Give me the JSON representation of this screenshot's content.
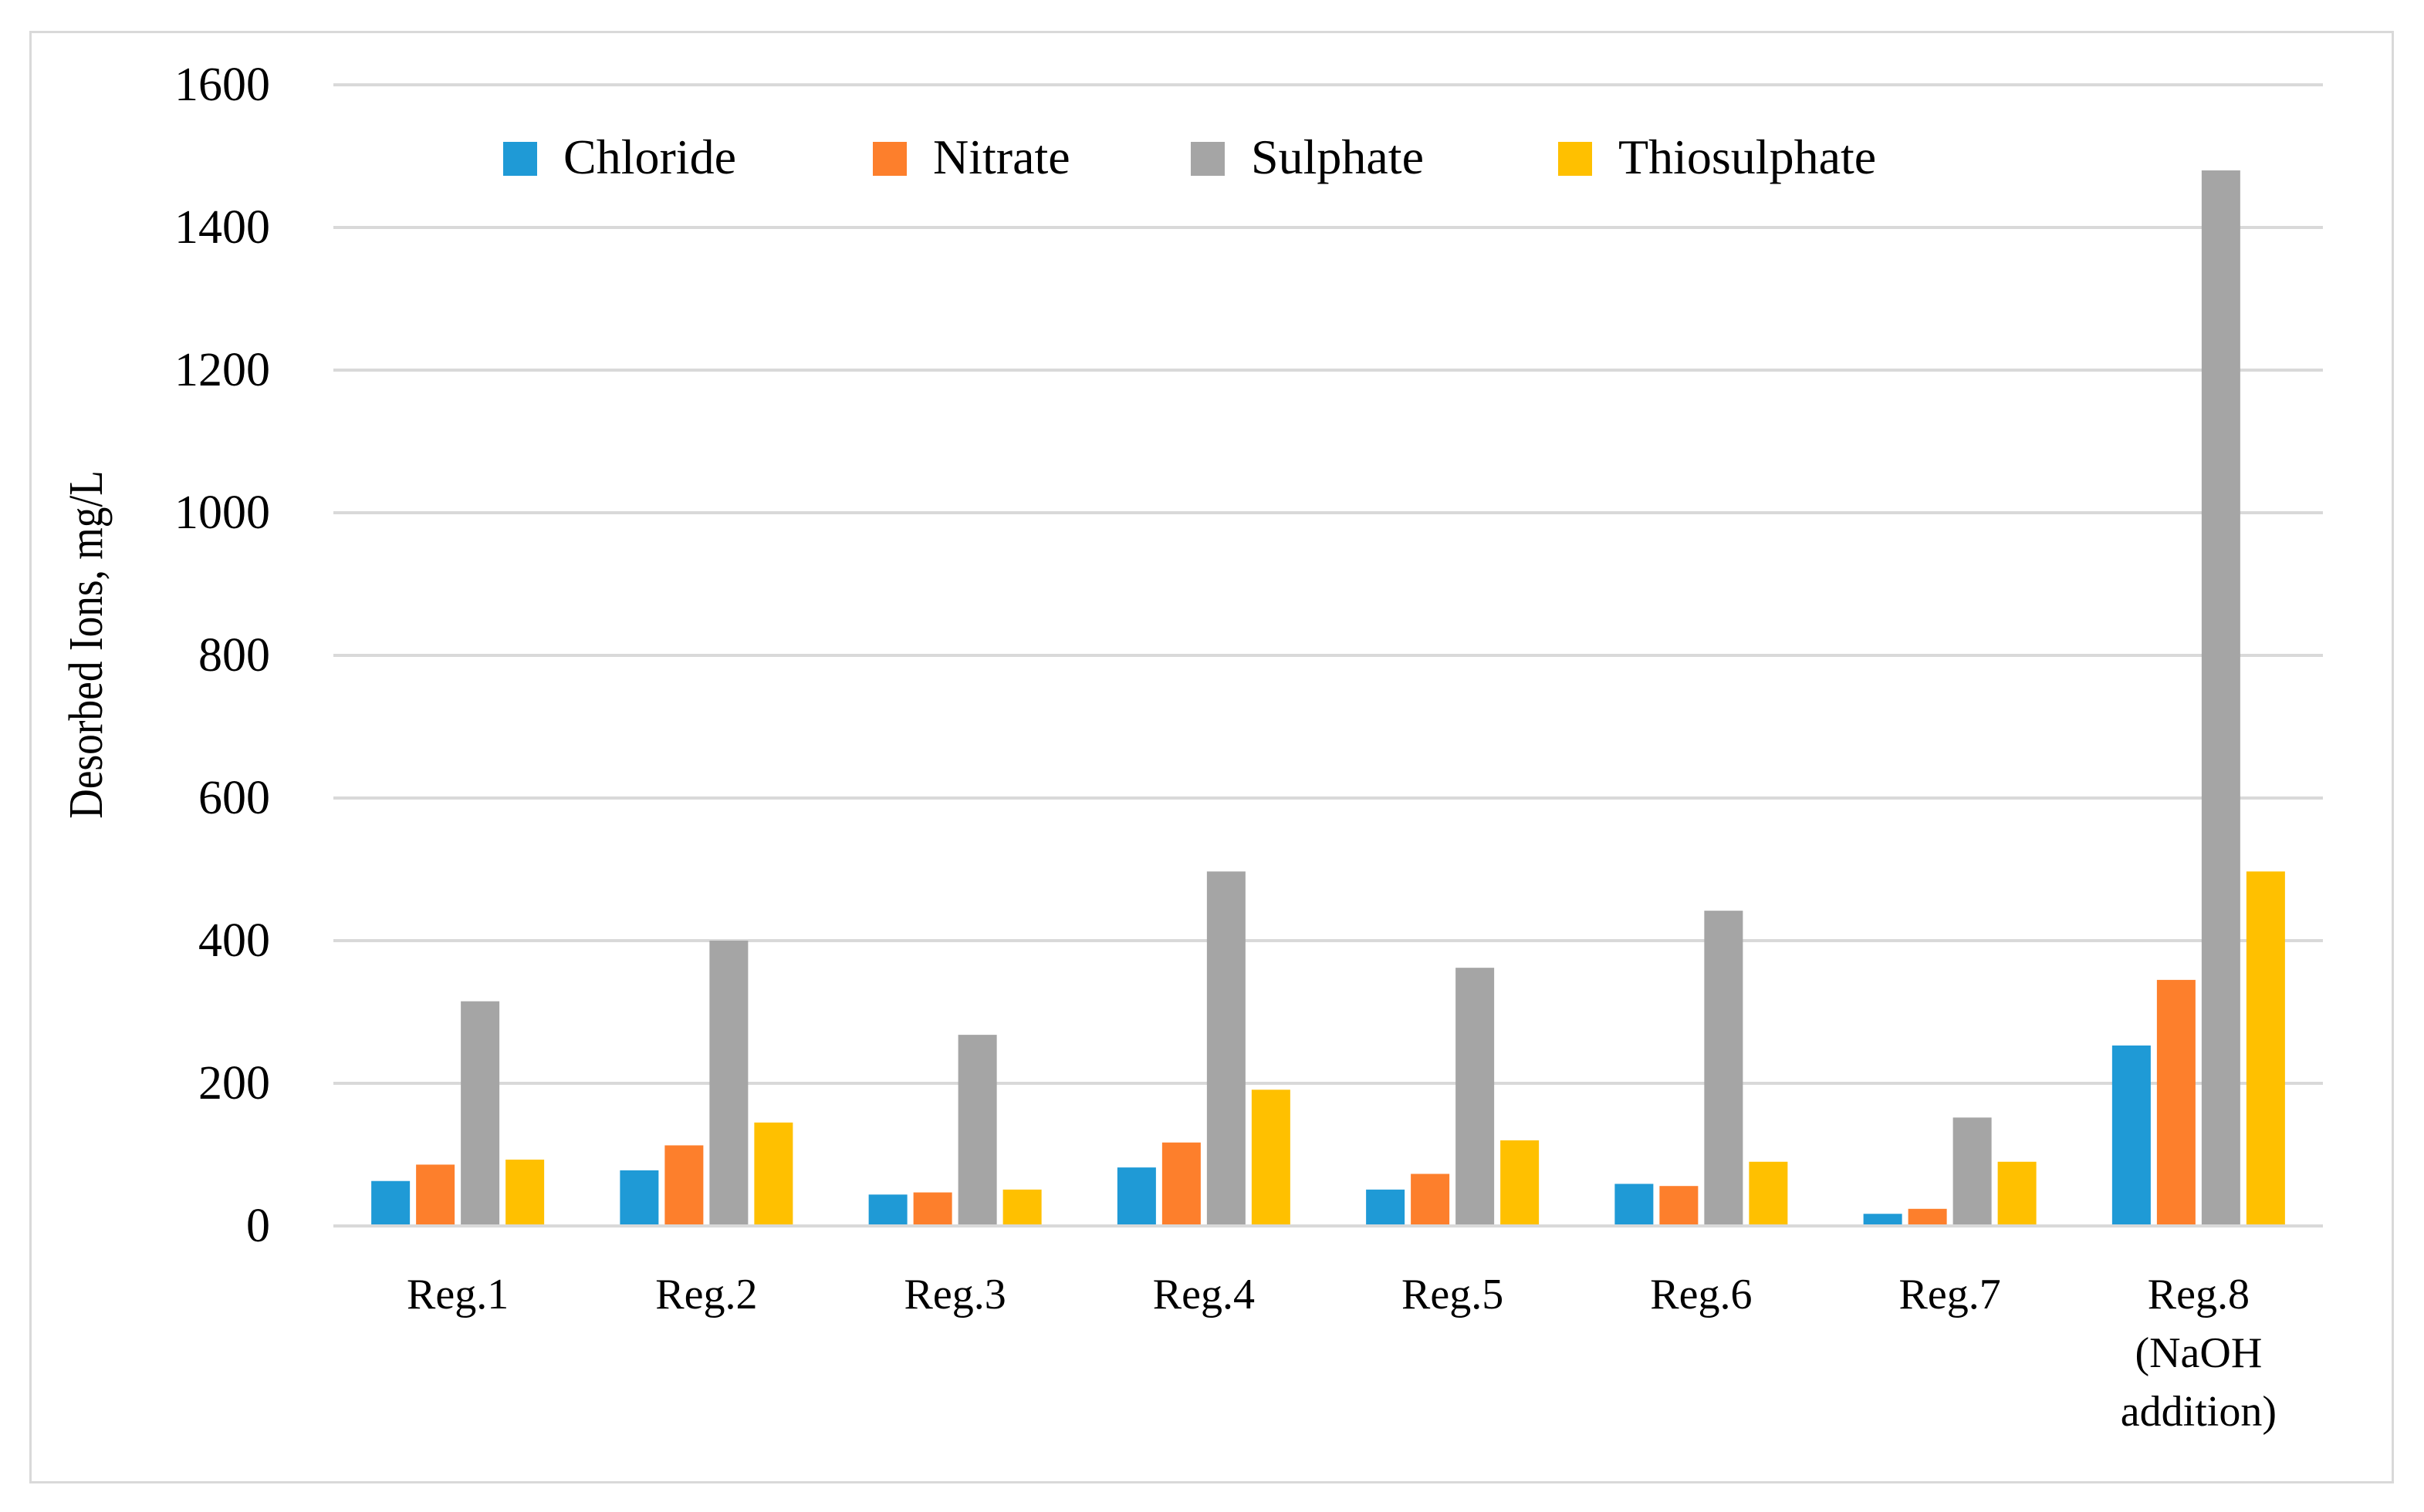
{
  "chart_data": {
    "type": "bar",
    "title": "",
    "xlabel": "",
    "ylabel": "Desorbed Ions, mg/L",
    "ylim": [
      0,
      1600
    ],
    "yticks": [
      0,
      200,
      400,
      600,
      800,
      1000,
      1200,
      1400,
      1600
    ],
    "grid": true,
    "legend_position": "top-center",
    "categories": [
      [
        "Reg.1"
      ],
      [
        "Reg.2"
      ],
      [
        "Reg.3"
      ],
      [
        "Reg.4"
      ],
      [
        "Reg.5"
      ],
      [
        "Reg.6"
      ],
      [
        "Reg.7"
      ],
      [
        "Reg.8",
        "(NaOH",
        "addition)"
      ]
    ],
    "series": [
      {
        "name": "Chloride",
        "color": "#1f9ad6",
        "values": [
          63,
          78,
          44,
          82,
          51,
          59,
          17,
          253
        ]
      },
      {
        "name": "Nitrate",
        "color": "#fd7f2c",
        "values": [
          86,
          113,
          47,
          117,
          73,
          56,
          24,
          345
        ]
      },
      {
        "name": "Sulphate",
        "color": "#a5a5a5",
        "values": [
          315,
          400,
          268,
          497,
          362,
          442,
          152,
          1480
        ]
      },
      {
        "name": "Thiosulphate",
        "color": "#ffc000",
        "values": [
          93,
          145,
          51,
          191,
          120,
          90,
          90,
          497
        ]
      }
    ]
  }
}
